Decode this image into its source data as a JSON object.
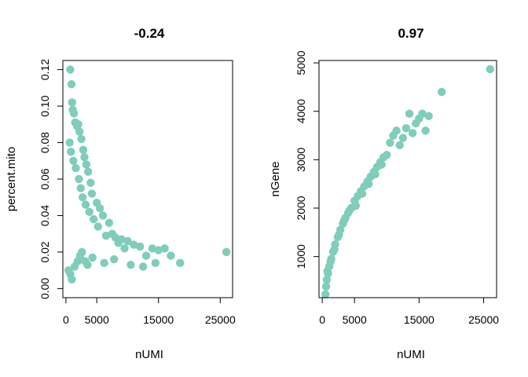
{
  "chart_data": [
    {
      "type": "scatter",
      "title": "-0.24",
      "xlabel": "nUMI",
      "ylabel": "percent.mito",
      "xlim": [
        -500,
        27000
      ],
      "ylim": [
        -0.005,
        0.125
      ],
      "xticks": [
        0,
        5000,
        15000,
        25000
      ],
      "xtick_labels": [
        "0",
        "5000",
        "15000",
        "25000"
      ],
      "yticks": [
        0.0,
        0.02,
        0.04,
        0.06,
        0.08,
        0.1,
        0.12
      ],
      "ytick_labels": [
        "0.00",
        "0.02",
        "0.04",
        "0.06",
        "0.08",
        "0.10",
        "0.12"
      ],
      "grid": false,
      "point_color": "#7fcdbb",
      "series": [
        {
          "x": [
            700,
            900,
            1000,
            1100,
            1300,
            1500,
            1800,
            2000,
            2200,
            2500,
            2800,
            3000,
            3300,
            3600,
            4000,
            4200,
            5000,
            5500,
            6000,
            7000,
            7500,
            8000,
            9000,
            10000,
            11000,
            12000,
            14000,
            15000,
            16000,
            18500,
            26000,
            600,
            800,
            1200,
            1600,
            2100,
            2400,
            2700,
            3200,
            3800,
            4500,
            5200,
            6500,
            8500,
            9500,
            13000,
            400,
            700,
            950,
            1400,
            1900,
            2300,
            2600,
            3100,
            3500,
            4300,
            6200,
            7800,
            10500,
            12500,
            14500,
            17000
          ],
          "y": [
            0.12,
            0.112,
            0.102,
            0.098,
            0.096,
            0.091,
            0.089,
            0.09,
            0.086,
            0.082,
            0.076,
            0.072,
            0.068,
            0.064,
            0.058,
            0.052,
            0.047,
            0.044,
            0.04,
            0.036,
            0.03,
            0.028,
            0.027,
            0.026,
            0.024,
            0.023,
            0.022,
            0.021,
            0.022,
            0.014,
            0.02,
            0.08,
            0.075,
            0.07,
            0.066,
            0.06,
            0.055,
            0.05,
            0.046,
            0.042,
            0.038,
            0.034,
            0.029,
            0.025,
            0.022,
            0.018,
            0.01,
            0.008,
            0.005,
            0.012,
            0.015,
            0.018,
            0.02,
            0.015,
            0.013,
            0.017,
            0.014,
            0.016,
            0.013,
            0.012,
            0.014,
            0.018
          ]
        }
      ]
    },
    {
      "type": "scatter",
      "title": "0.97",
      "xlabel": "nUMI",
      "ylabel": "nGene",
      "xlim": [
        -500,
        27000
      ],
      "ylim": [
        150,
        5050
      ],
      "xticks": [
        0,
        5000,
        15000,
        25000
      ],
      "xtick_labels": [
        "0",
        "5000",
        "15000",
        "25000"
      ],
      "yticks": [
        1000,
        2000,
        3000,
        4000,
        5000
      ],
      "ytick_labels": [
        "1000",
        "2000",
        "3000",
        "4000",
        "5000"
      ],
      "grid": false,
      "point_color": "#7fcdbb",
      "series": [
        {
          "x": [
            500,
            600,
            700,
            900,
            1100,
            1400,
            1700,
            2000,
            2400,
            2800,
            3200,
            3600,
            4000,
            4500,
            5000,
            5500,
            6000,
            6500,
            7000,
            7500,
            8000,
            8500,
            9000,
            9500,
            10000,
            10500,
            11000,
            11500,
            12000,
            12500,
            13000,
            13500,
            14000,
            14500,
            15000,
            15500,
            16000,
            16500,
            18500,
            26000,
            800,
            1300,
            1900,
            2600,
            3400,
            4200,
            5200,
            6200,
            7200,
            8200,
            9200
          ],
          "y": [
            220,
            380,
            520,
            650,
            800,
            950,
            1100,
            1250,
            1400,
            1550,
            1680,
            1800,
            1900,
            2000,
            2150,
            2250,
            2350,
            2450,
            2550,
            2650,
            2750,
            2850,
            2950,
            3050,
            3100,
            3350,
            3500,
            3600,
            3300,
            3450,
            3650,
            3950,
            3550,
            3750,
            3850,
            3950,
            3600,
            3900,
            4400,
            4870,
            700,
            900,
            1150,
            1450,
            1750,
            1950,
            2050,
            2300,
            2500,
            2700,
            2900
          ]
        }
      ]
    }
  ]
}
